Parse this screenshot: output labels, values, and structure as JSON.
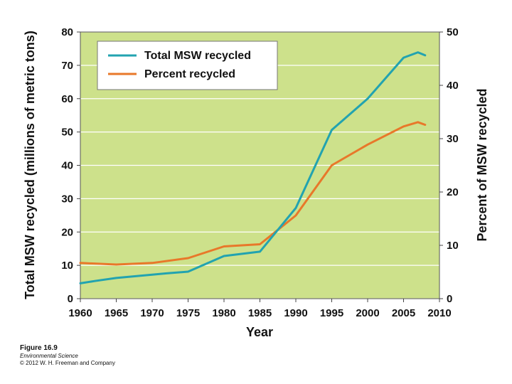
{
  "chart_data": {
    "type": "line",
    "title": "",
    "xlabel": "Year",
    "ylabel_left": "Total MSW recycled (millions of metric tons)",
    "ylabel_right": "Percent of MSW recycled",
    "xlim": [
      1960,
      2010
    ],
    "ylim_left": [
      0,
      80
    ],
    "ylim_right": [
      0,
      50
    ],
    "x_ticks": [
      "1960",
      "1965",
      "1970",
      "1975",
      "1980",
      "1985",
      "1990",
      "1995",
      "2000",
      "2005",
      "2010"
    ],
    "y_ticks_left": [
      "0",
      "10",
      "20",
      "30",
      "40",
      "50",
      "60",
      "70",
      "80"
    ],
    "y_ticks_right": [
      "0",
      "10",
      "20",
      "30",
      "40",
      "50"
    ],
    "grid": true,
    "legend": "top-left",
    "series": [
      {
        "name": "Total MSW recycled",
        "axis": "left",
        "color": "#22a3b0",
        "points": [
          [
            1960,
            4.6
          ],
          [
            1962,
            5.3
          ],
          [
            1965,
            6.2
          ],
          [
            1970,
            7.2
          ],
          [
            1972,
            7.6
          ],
          [
            1975,
            8.1
          ],
          [
            1980,
            12.8
          ],
          [
            1985,
            14.1
          ],
          [
            1990,
            27.2
          ],
          [
            1995,
            50.6
          ],
          [
            2000,
            60.0
          ],
          [
            2005,
            72.3
          ],
          [
            2007,
            73.9
          ],
          [
            2008,
            73.0
          ]
        ]
      },
      {
        "name": "Percent recycled",
        "axis": "right",
        "color": "#e8782a",
        "points": [
          [
            1960,
            6.7
          ],
          [
            1965,
            6.4
          ],
          [
            1970,
            6.7
          ],
          [
            1975,
            7.6
          ],
          [
            1980,
            9.8
          ],
          [
            1985,
            10.2
          ],
          [
            1990,
            15.6
          ],
          [
            1995,
            25.0
          ],
          [
            2000,
            28.9
          ],
          [
            2005,
            32.3
          ],
          [
            2007,
            33.1
          ],
          [
            2008,
            32.6
          ]
        ]
      }
    ]
  },
  "caption": {
    "figure": "Figure 16.9",
    "book": "Environmental Science",
    "copyright": "© 2012 W. H. Freeman and Company"
  }
}
